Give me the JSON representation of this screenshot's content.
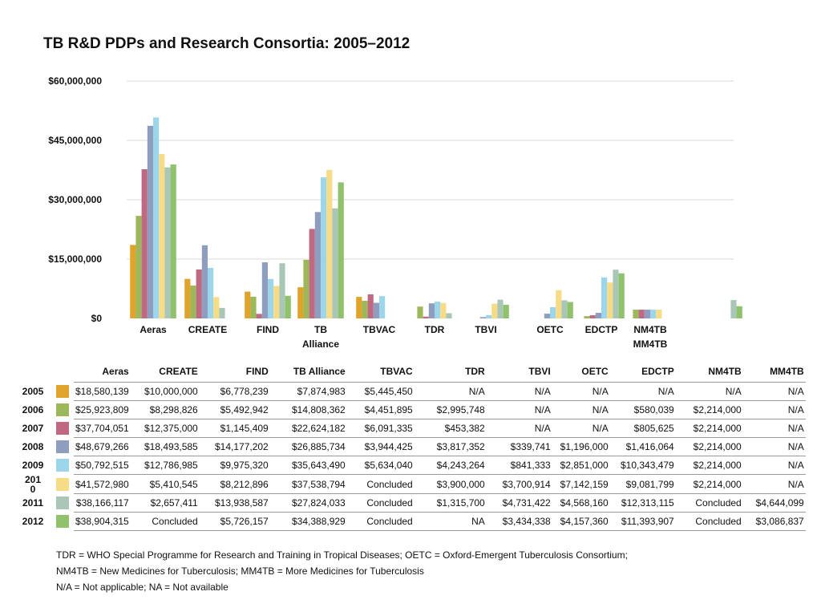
{
  "chart_data": {
    "type": "bar",
    "title": "TB R&D PDPs and Research Consortia: 2005–2012",
    "xlabel": "",
    "ylabel": "",
    "ylim": [
      0,
      60000000
    ],
    "y_ticks": [
      {
        "value": 0,
        "label": "$0"
      },
      {
        "value": 15000000,
        "label": "$15,000,000"
      },
      {
        "value": 30000000,
        "label": "$30,000,000"
      },
      {
        "value": 45000000,
        "label": "$45,000,000"
      },
      {
        "value": 60000000,
        "label": "$60,000,000"
      }
    ],
    "grid": true,
    "legend_placement": "left of table",
    "categories": [
      "Aeras",
      "CREATE",
      "FIND",
      "TB Alliance",
      "TBVAC",
      "TDR",
      "TBVI",
      "OETC",
      "EDCTP",
      "NM4TB",
      "MM4TB"
    ],
    "axis_labels": [
      "Aeras",
      "CREATE",
      "FIND",
      "TB\nAlliance",
      "TBVAC",
      "TDR",
      "TBVI",
      "OETC",
      "EDCTP",
      "NM4TB\nMM4TB",
      ""
    ],
    "series": [
      {
        "name": "2005",
        "color": "#e0a42c",
        "values": [
          18580139,
          10000000,
          6778239,
          7874983,
          5445450,
          null,
          null,
          null,
          null,
          null,
          null
        ],
        "labels": [
          "$18,580,139",
          "$10,000,000",
          "$6,778,239",
          "$7,874,983",
          "$5,445,450",
          "N/A",
          "N/A",
          "N/A",
          "N/A",
          "N/A",
          "N/A"
        ]
      },
      {
        "name": "2006",
        "color": "#9cb85a",
        "values": [
          25923809,
          8298826,
          5492942,
          14808362,
          4451895,
          2995748,
          null,
          null,
          580039,
          2214000,
          null
        ],
        "labels": [
          "$25,923,809",
          "$8,298,826",
          "$5,492,942",
          "$14,808,362",
          "$4,451,895",
          "$2,995,748",
          "N/A",
          "N/A",
          "$580,039",
          "$2,214,000",
          "N/A"
        ]
      },
      {
        "name": "2007",
        "color": "#bf6a82",
        "values": [
          37704051,
          12375000,
          1145409,
          22624182,
          6091335,
          453382,
          null,
          null,
          805625,
          2214000,
          null
        ],
        "labels": [
          "$37,704,051",
          "$12,375,000",
          "$1,145,409",
          "$22,624,182",
          "$6,091,335",
          "$453,382",
          "N/A",
          "N/A",
          "$805,625",
          "$2,214,000",
          "N/A"
        ]
      },
      {
        "name": "2008",
        "color": "#8f9dbf",
        "values": [
          48679266,
          18493585,
          14177202,
          26885734,
          3944425,
          3817352,
          339741,
          1196000,
          1416064,
          2214000,
          null
        ],
        "labels": [
          "$48,679,266",
          "$18,493,585",
          "$14,177,202",
          "$26,885,734",
          "$3,944,425",
          "$3,817,352",
          "$339,741",
          "$1,196,000",
          "$1,416,064",
          "$2,214,000",
          "N/A"
        ]
      },
      {
        "name": "2009",
        "color": "#9dd6ea",
        "values": [
          50792515,
          12786985,
          9975320,
          35643490,
          5634040,
          4243264,
          841333,
          2851000,
          10343479,
          2214000,
          null
        ],
        "labels": [
          "$50,792,515",
          "$12,786,985",
          "$9,975,320",
          "$35,643,490",
          "$5,634,040",
          "$4,243,264",
          "$841,333",
          "$2,851,000",
          "$10,343,479",
          "$2,214,000",
          "N/A"
        ]
      },
      {
        "name": "2010",
        "color": "#f6dc87",
        "values": [
          41572980,
          5410545,
          8212896,
          37538794,
          null,
          3900000,
          3700914,
          7142159,
          9081799,
          2214000,
          null
        ],
        "labels": [
          "$41,572,980",
          "$5,410,545",
          "$8,212,896",
          "$37,538,794",
          "Concluded",
          "$3,900,000",
          "$3,700,914",
          "$7,142,159",
          "$9,081,799",
          "$2,214,000",
          "N/A"
        ]
      },
      {
        "name": "2011",
        "color": "#a9c6b6",
        "values": [
          38166117,
          2657411,
          13938587,
          27824033,
          null,
          1315700,
          4731422,
          4568160,
          12313115,
          null,
          4644099
        ],
        "labels": [
          "$38,166,117",
          "$2,657,411",
          "$13,938,587",
          "$27,824,033",
          "Concluded",
          "$1,315,700",
          "$4,731,422",
          "$4,568,160",
          "$12,313,115",
          "Concluded",
          "$4,644,099"
        ]
      },
      {
        "name": "2012",
        "color": "#8fc26a",
        "values": [
          38904315,
          null,
          5726157,
          34388929,
          null,
          null,
          3434338,
          4157360,
          11393907,
          null,
          3086837
        ],
        "labels": [
          "$38,904,315",
          "Concluded",
          "$5,726,157",
          "$34,388,929",
          "Concluded",
          "NA",
          "$3,434,338",
          "$4,157,360",
          "$11,393,907",
          "Concluded",
          "$3,086,837"
        ]
      }
    ]
  },
  "table": {
    "headers": [
      "Aeras",
      "CREATE",
      "FIND",
      "TB Alliance",
      "TBVAC",
      "TDR",
      "TBVI",
      "OETC",
      "EDCTP",
      "NM4TB",
      "MM4TB"
    ],
    "year_labels": [
      "2005",
      "2006",
      "2007",
      "2008",
      "2009",
      "201\n0",
      "2011",
      "2012"
    ]
  },
  "notes": [
    "TDR =  WHO Special Programme for Research and Training in Tropical Diseases; OETC = Oxford-Emergent Tuberculosis Consortium;",
    "NM4TB = New Medicines for Tuberculosis; MM4TB = More Medicines for Tuberculosis",
    "N/A = Not applicable; NA = Not available"
  ]
}
